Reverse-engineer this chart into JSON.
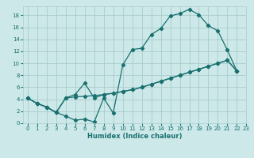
{
  "xlabel": "Humidex (Indice chaleur)",
  "bg_color": "#cce8e8",
  "grid_color": "#aacccc",
  "line_color": "#1a7070",
  "xlim": [
    -0.5,
    23
  ],
  "ylim": [
    0,
    19.5
  ],
  "xticks": [
    0,
    1,
    2,
    3,
    4,
    5,
    6,
    7,
    8,
    9,
    10,
    11,
    12,
    13,
    14,
    15,
    16,
    17,
    18,
    19,
    20,
    21,
    22,
    23
  ],
  "yticks": [
    0,
    2,
    4,
    6,
    8,
    10,
    12,
    14,
    16,
    18
  ],
  "line1_x": [
    0,
    1,
    2,
    3,
    4,
    5,
    6,
    7,
    8,
    9,
    10,
    11,
    12,
    13,
    14,
    15,
    16,
    17,
    18,
    19,
    20,
    21,
    22
  ],
  "line1_y": [
    4.2,
    3.3,
    2.7,
    1.8,
    1.2,
    0.5,
    0.7,
    0.2,
    4.2,
    1.7,
    9.7,
    12.3,
    12.5,
    14.8,
    15.8,
    17.9,
    18.3,
    19.0,
    18.1,
    16.3,
    15.4,
    12.2,
    8.7
  ],
  "line2_x": [
    0,
    1,
    2,
    3,
    4,
    5,
    6,
    7,
    8,
    9,
    10,
    11,
    12,
    13,
    14,
    15,
    16,
    17,
    18,
    19,
    20,
    21,
    22
  ],
  "line2_y": [
    4.2,
    3.3,
    2.7,
    1.8,
    4.2,
    4.4,
    4.5,
    4.6,
    4.8,
    5.0,
    5.3,
    5.6,
    6.0,
    6.5,
    7.0,
    7.5,
    8.0,
    8.5,
    9.0,
    9.5,
    10.0,
    10.5,
    8.7
  ],
  "line3_x": [
    0,
    1,
    2,
    3,
    4,
    5,
    6,
    7,
    8,
    9,
    10,
    11,
    12,
    13,
    14,
    15,
    16,
    17,
    18,
    19,
    20,
    21,
    22
  ],
  "line3_y": [
    4.2,
    3.3,
    2.7,
    1.8,
    4.2,
    4.8,
    6.7,
    4.2,
    4.8,
    5.0,
    5.3,
    5.6,
    6.0,
    6.5,
    7.0,
    7.5,
    8.0,
    8.5,
    9.0,
    9.5,
    10.0,
    10.5,
    8.7
  ]
}
